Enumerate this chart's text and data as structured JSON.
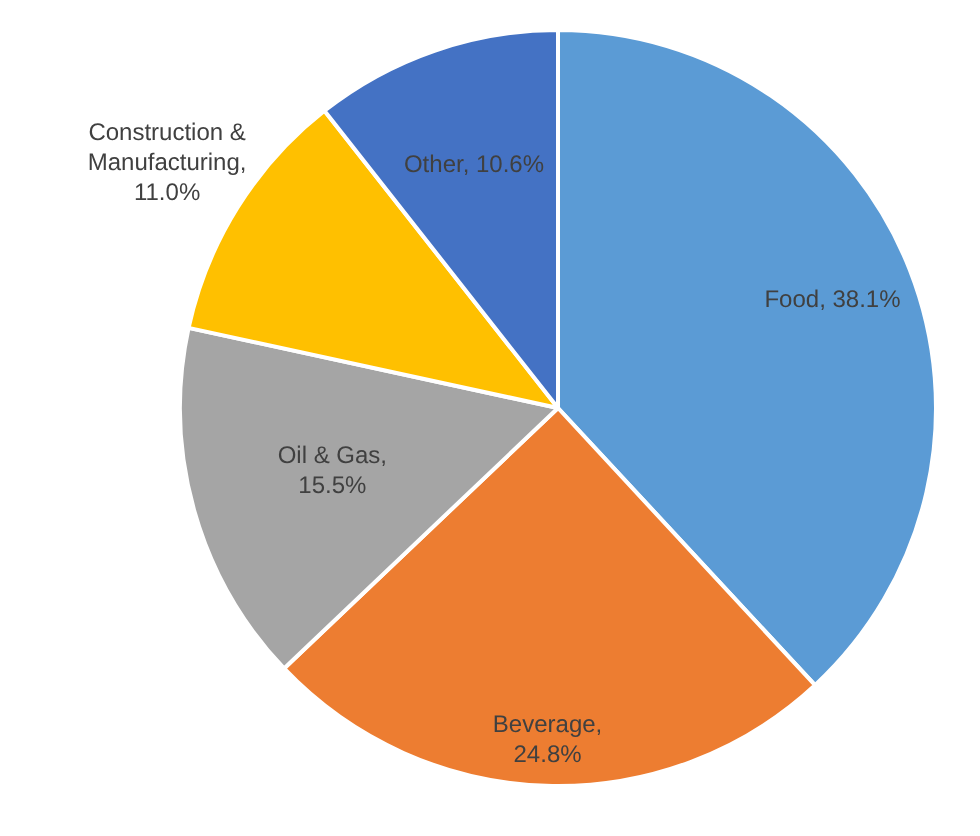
{
  "chart_data": {
    "type": "pie",
    "categories": [
      "Food",
      "Beverage",
      "Oil & Gas",
      "Construction & Manufacturing",
      "Other"
    ],
    "values": [
      38.1,
      24.8,
      15.5,
      11.0,
      10.6
    ],
    "value_labels": [
      ", 38.1%",
      ", 24.8%",
      ", 15.5%",
      ", 11.0%",
      ", 10.6%"
    ],
    "colors": [
      "#5b9bd5",
      "#ed7d31",
      "#a5a5a5",
      "#ffc000",
      "#4472c4"
    ],
    "legend": false
  }
}
